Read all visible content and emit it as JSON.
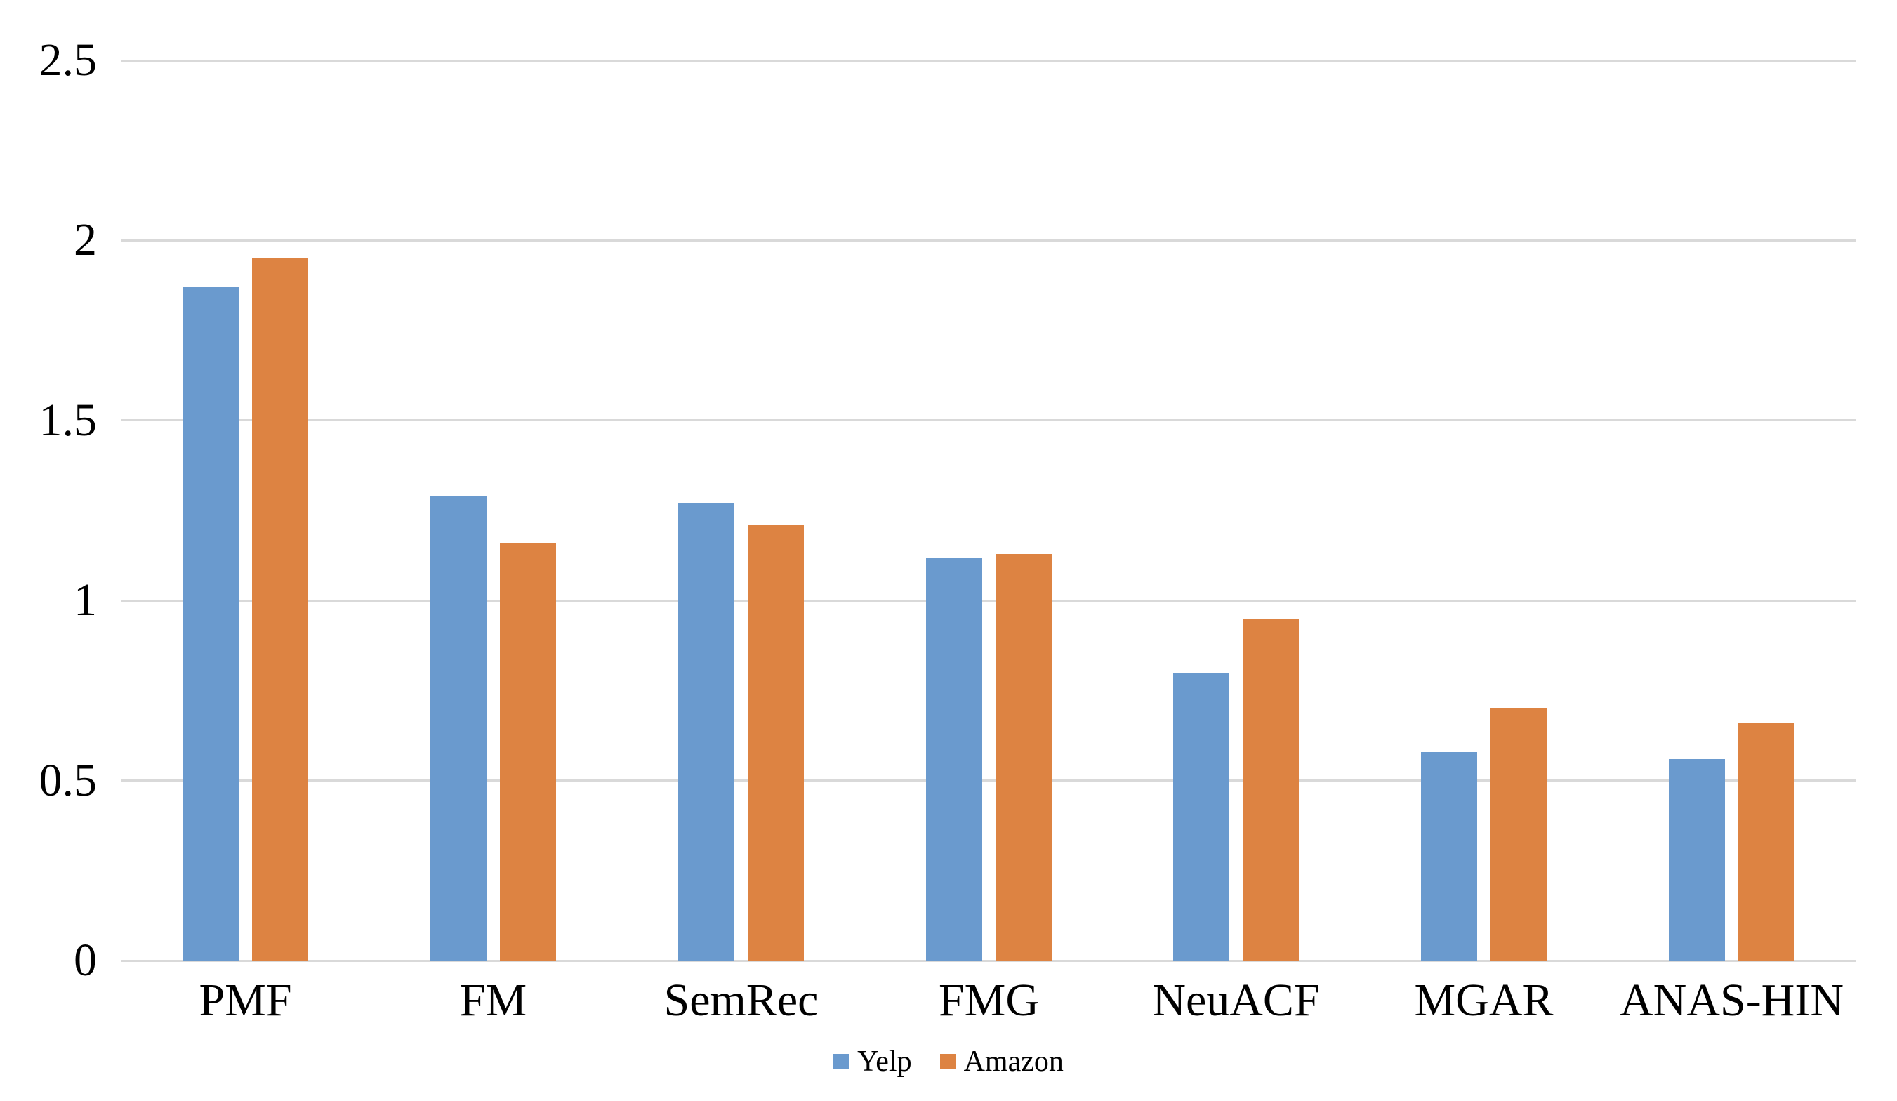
{
  "chart_data": {
    "type": "bar",
    "title": "",
    "xlabel": "",
    "ylabel": "",
    "categories": [
      "PMF",
      "FM",
      "SemRec",
      "FMG",
      "NeuACF",
      "MGAR",
      "ANAS-HIN"
    ],
    "series": [
      {
        "name": "Yelp",
        "color": "#6A9ACE",
        "values": [
          1.87,
          1.29,
          1.27,
          1.12,
          0.8,
          0.58,
          0.56
        ]
      },
      {
        "name": "Amazon",
        "color": "#DD8342",
        "values": [
          1.95,
          1.16,
          1.21,
          1.13,
          0.95,
          0.7,
          0.66
        ]
      }
    ],
    "ylim": [
      0,
      2.5
    ],
    "yticks": [
      0,
      0.5,
      1,
      1.5,
      2,
      2.5
    ],
    "ytick_labels": [
      "0",
      "0.5",
      "1",
      "1.5",
      "2",
      "2.5"
    ],
    "grid": "horizontal",
    "gridline_color": "#D9D9D9",
    "background_color": "#FFFFFF",
    "text_color": "#000000",
    "legend_position": "bottom-center",
    "legend": {
      "items": [
        {
          "label": "Yelp",
          "color": "#6A9ACE"
        },
        {
          "label": "Amazon",
          "color": "#DD8342"
        }
      ]
    }
  }
}
